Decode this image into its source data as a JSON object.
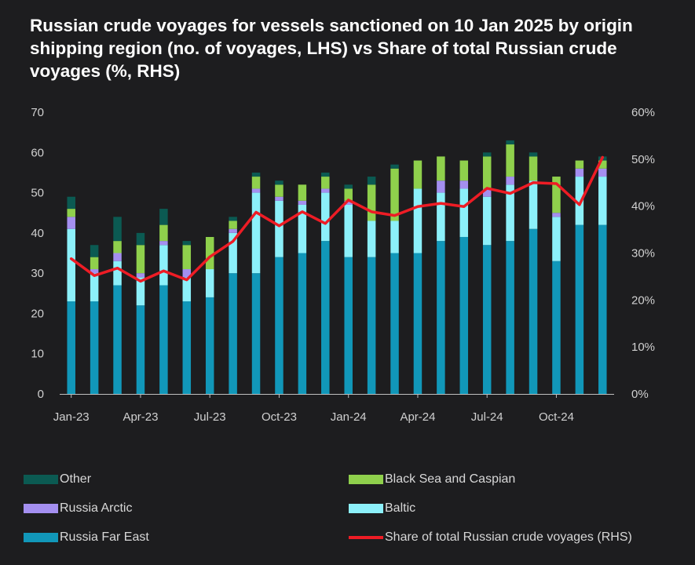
{
  "chart_data": {
    "type": "bar",
    "stacked": true,
    "title": "Russian crude voyages for vessels sanctioned on 10 Jan 2025 by origin shipping region (no. of voyages, LHS) vs Share of total Russian crude voyages (%, RHS)",
    "categories": [
      "Jan-23",
      "Feb-23",
      "Mar-23",
      "Apr-23",
      "May-23",
      "Jun-23",
      "Jul-23",
      "Aug-23",
      "Sep-23",
      "Oct-23",
      "Nov-23",
      "Dec-23",
      "Jan-24",
      "Feb-24",
      "Mar-24",
      "Apr-24",
      "May-24",
      "Jun-24",
      "Jul-24",
      "Aug-24",
      "Sep-24",
      "Oct-24",
      "Nov-24",
      "Dec-24"
    ],
    "x_tick_labels": [
      "Jan-23",
      "Apr-23",
      "Jul-23",
      "Oct-23",
      "Jan-24",
      "Apr-24",
      "Jul-24",
      "Oct-24"
    ],
    "y_left": {
      "ylim": [
        0,
        70
      ],
      "ticks": [
        "0",
        "10",
        "20",
        "30",
        "40",
        "50",
        "60",
        "70"
      ]
    },
    "y_right": {
      "ylim": [
        0,
        60
      ],
      "ticks": [
        "0%",
        "10%",
        "20%",
        "30%",
        "40%",
        "50%",
        "60%"
      ]
    },
    "series": [
      {
        "name": "Russia Far East",
        "color": "#1197b9",
        "axis": "left",
        "values": [
          23,
          23,
          27,
          22,
          27,
          23,
          24,
          30,
          30,
          34,
          35,
          38,
          34,
          34,
          35,
          35,
          38,
          39,
          37,
          38,
          41,
          33,
          42,
          42
        ]
      },
      {
        "name": "Baltic",
        "color": "#8cf0fa",
        "axis": "left",
        "values": [
          18,
          7,
          6,
          7,
          10,
          6,
          7,
          10,
          20,
          14,
          12,
          12,
          13,
          9,
          8,
          16,
          12,
          12,
          12,
          14,
          12,
          11,
          12,
          12
        ]
      },
      {
        "name": "Russia Arctic",
        "color": "#a48ff0",
        "axis": "left",
        "values": [
          3,
          1,
          2,
          1,
          1,
          2,
          0,
          1,
          1,
          1,
          1,
          1,
          1,
          0,
          0,
          0,
          3,
          2,
          2,
          2,
          0,
          1,
          2,
          2
        ]
      },
      {
        "name": "Black Sea and Caspian",
        "color": "#8fd04c",
        "axis": "left",
        "values": [
          2,
          3,
          3,
          7,
          4,
          6,
          8,
          2,
          3,
          3,
          4,
          3,
          3,
          9,
          13,
          7,
          6,
          5,
          8,
          8,
          6,
          9,
          2,
          2
        ]
      },
      {
        "name": "Other",
        "color": "#0b5a52",
        "axis": "left",
        "values": [
          3,
          3,
          6,
          3,
          4,
          1,
          0,
          1,
          1,
          1,
          0,
          1,
          1,
          2,
          1,
          0,
          0,
          0,
          1,
          1,
          1,
          0,
          0,
          1
        ]
      },
      {
        "name": "Share of total Russian crude voyages (RHS)",
        "color": "#ee1c25",
        "axis": "right",
        "type": "line",
        "values": [
          28.8,
          25.2,
          26.8,
          24.0,
          26.2,
          24.3,
          29.2,
          32.5,
          38.7,
          35.8,
          38.8,
          36.3,
          41.3,
          38.8,
          38.0,
          39.9,
          40.6,
          39.9,
          43.8,
          42.7,
          45.0,
          44.8,
          40.3,
          50.4
        ]
      }
    ],
    "grid": false,
    "legend": "bottom"
  },
  "legend": [
    {
      "label": "Other",
      "color": "#0b5a52"
    },
    {
      "label": "Black Sea and Caspian",
      "color": "#8fd04c"
    },
    {
      "label": "Russia Arctic",
      "color": "#a48ff0"
    },
    {
      "label": "Baltic",
      "color": "#8cf0fa"
    },
    {
      "label": "Russia Far East",
      "color": "#1197b9"
    },
    {
      "label": "Share of total Russian crude voyages (RHS)",
      "color": "#ee1c25"
    }
  ]
}
